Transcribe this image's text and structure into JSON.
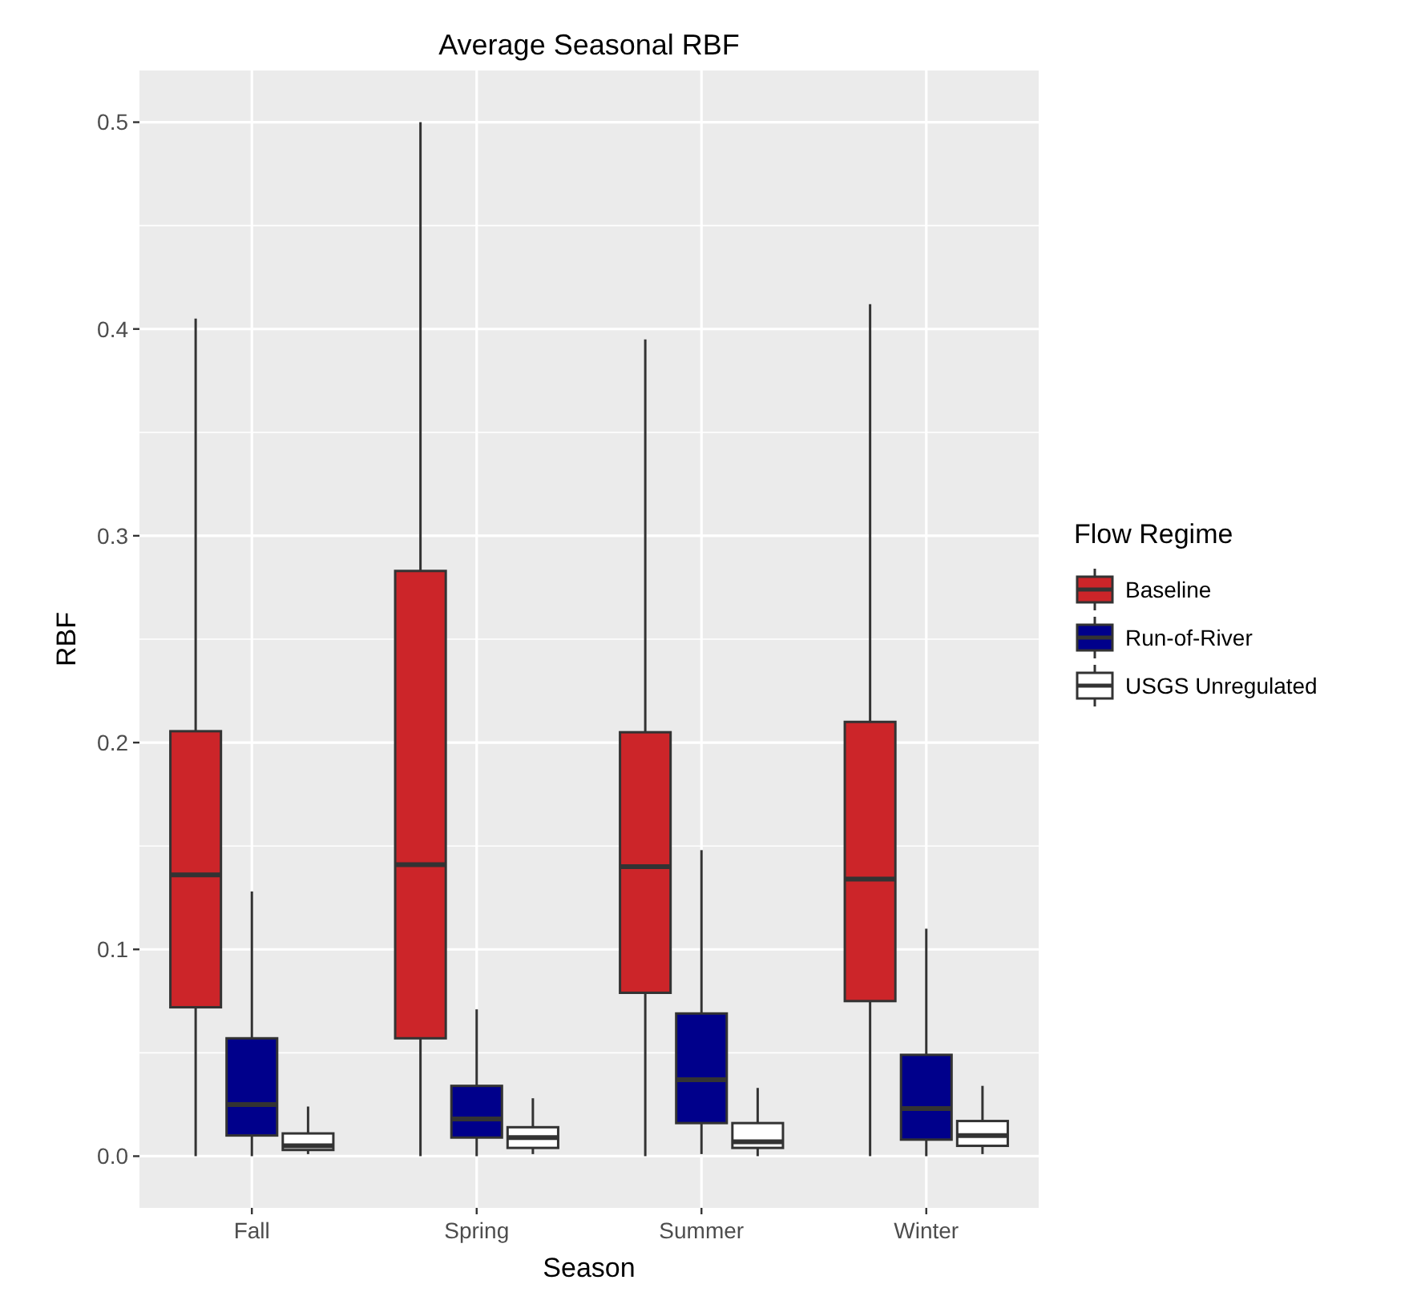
{
  "chart_data": {
    "type": "box",
    "title": "Average Seasonal RBF",
    "xlabel": "Season",
    "ylabel": "RBF",
    "legend_title": "Flow Regime",
    "legend": "right",
    "grid": true,
    "categories": [
      "Fall",
      "Spring",
      "Summer",
      "Winter"
    ],
    "ylim": [
      -0.025,
      0.525
    ],
    "yticks": [
      {
        "value": 0,
        "label": "0.0"
      },
      0.1,
      0.2,
      0.3,
      0.4,
      0.5
    ],
    "series": [
      {
        "name": "Baseline",
        "color": "#cc2529",
        "boxes": [
          {
            "low": 0,
            "q1": 0.072,
            "median": 0.136,
            "q3": 0.2055,
            "high": 0.405
          },
          {
            "low": 0,
            "q1": 0.057,
            "median": 0.141,
            "q3": 0.283,
            "high": 0.5
          },
          {
            "low": 0,
            "q1": 0.079,
            "median": 0.14,
            "q3": 0.205,
            "high": 0.395
          },
          {
            "low": 0,
            "q1": 0.075,
            "median": 0.134,
            "q3": 0.21,
            "high": 0.412
          }
        ]
      },
      {
        "name": "Run-of-River",
        "color": "#00008b",
        "boxes": [
          {
            "low": 0,
            "q1": 0.01,
            "median": 0.025,
            "q3": 0.057,
            "high": 0.128
          },
          {
            "low": 0,
            "q1": 0.009,
            "median": 0.018,
            "q3": 0.034,
            "high": 0.071
          },
          {
            "low": 0.001,
            "q1": 0.016,
            "median": 0.037,
            "q3": 0.069,
            "high": 0.148
          },
          {
            "low": 0,
            "q1": 0.008,
            "median": 0.023,
            "q3": 0.049,
            "high": 0.11
          }
        ]
      },
      {
        "name": "USGS Unregulated",
        "color": "#ffffff",
        "boxes": [
          {
            "low": 0.001,
            "q1": 0.003,
            "median": 0.005,
            "q3": 0.011,
            "high": 0.024
          },
          {
            "low": 0.001,
            "q1": 0.004,
            "median": 0.009,
            "q3": 0.014,
            "high": 0.028
          },
          {
            "low": 0,
            "q1": 0.004,
            "median": 0.007,
            "q3": 0.016,
            "high": 0.033
          },
          {
            "low": 0.001,
            "q1": 0.005,
            "median": 0.01,
            "q3": 0.017,
            "high": 0.034
          }
        ]
      }
    ]
  }
}
